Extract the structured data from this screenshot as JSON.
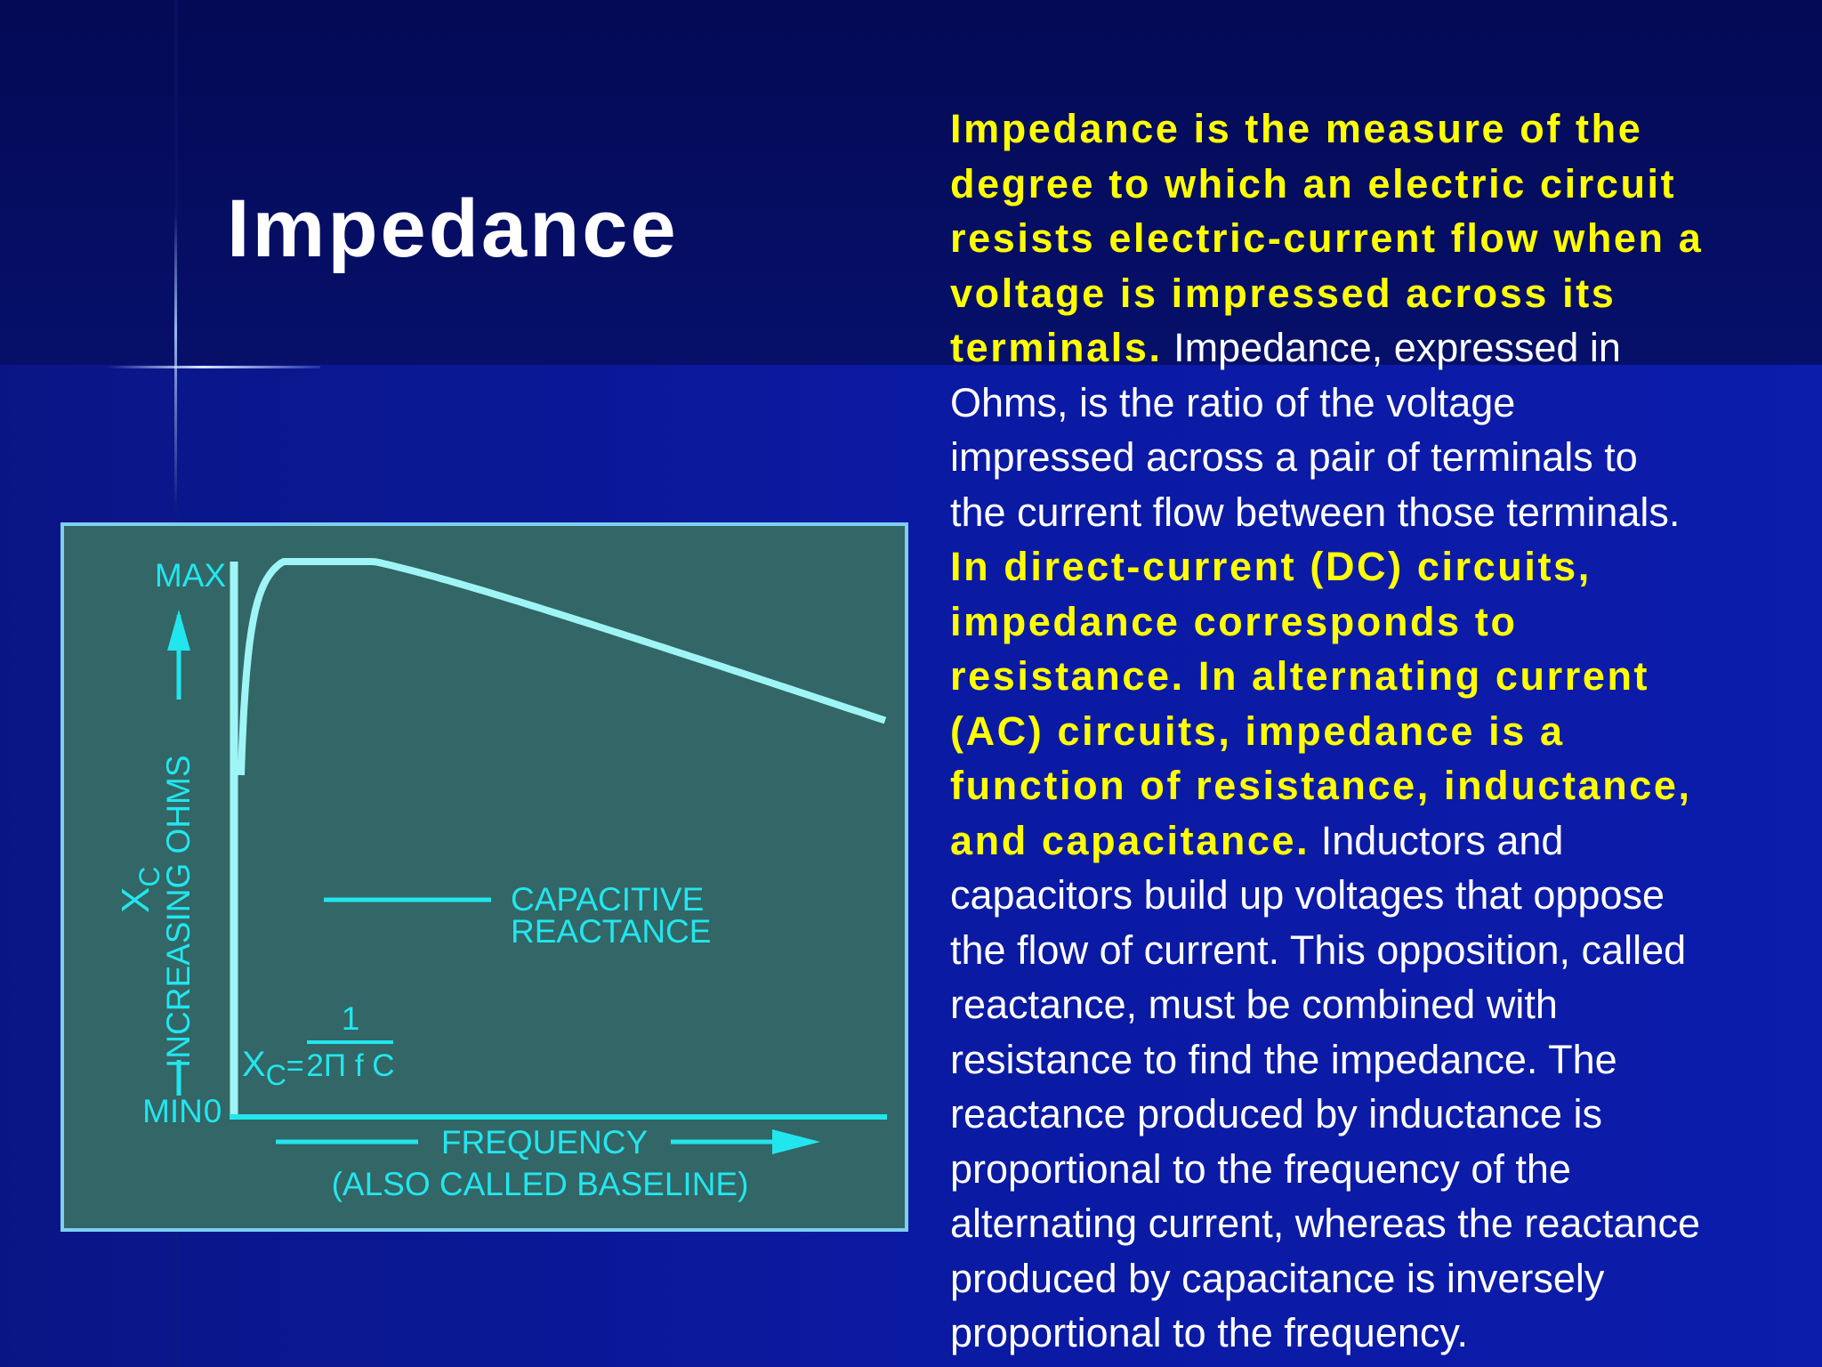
{
  "slide": {
    "title": "Impedance",
    "colors": {
      "background": "#0a18a0",
      "highlight_text": "#ffff00",
      "body_text": "#ffffff",
      "diagram_bg": "#336666",
      "diagram_ink": "#22e6ee",
      "curve": "#9ff5f5"
    }
  },
  "diagram": {
    "y_top_label": "MAX",
    "y_bottom_label": "MIN",
    "origin_label": "0",
    "y_axis_symbol": "X",
    "y_axis_symbol_sub": "C",
    "y_axis_label": "INCREASING OHMS",
    "curve_label_line1": "CAPACITIVE",
    "curve_label_line2": "REACTANCE",
    "formula_lhs": "X",
    "formula_lhs_sub": "C",
    "formula_equals": "=",
    "formula_numerator": "1",
    "formula_denominator": "2Π f C",
    "x_axis_label": "FREQUENCY",
    "x_axis_sublabel": "(ALSO CALLED BASELINE)"
  },
  "text": {
    "lines": [
      [
        {
          "t": "Impedance is the measure of the",
          "h": true
        }
      ],
      [
        {
          "t": "degree to which an electric circuit",
          "h": true
        }
      ],
      [
        {
          "t": "resists electric-current flow when a",
          "h": true
        }
      ],
      [
        {
          "t": "voltage is impressed across its",
          "h": true
        }
      ],
      [
        {
          "t": "terminals.",
          "h": true
        },
        {
          "t": " Impedance, expressed in",
          "h": false
        }
      ],
      [
        {
          "t": "Ohms, is the ratio of the voltage",
          "h": false
        }
      ],
      [
        {
          "t": "impressed across a pair of terminals to",
          "h": false
        }
      ],
      [
        {
          "t": "the current flow between those terminals.",
          "h": false
        }
      ],
      [
        {
          "t": "In direct-current (DC) circuits,",
          "h": true
        }
      ],
      [
        {
          "t": "impedance corresponds to",
          "h": true
        }
      ],
      [
        {
          "t": "resistance. In alternating current",
          "h": true
        }
      ],
      [
        {
          "t": "(AC) circuits, impedance is a",
          "h": true
        }
      ],
      [
        {
          "t": "function of resistance, inductance,",
          "h": true
        }
      ],
      [
        {
          "t": "and capacitance.",
          "h": true
        },
        {
          "t": " Inductors and",
          "h": false
        }
      ],
      [
        {
          "t": "capacitors build up voltages that oppose",
          "h": false
        }
      ],
      [
        {
          "t": "the flow of current. This opposition, called",
          "h": false
        }
      ],
      [
        {
          "t": "reactance, must be combined with",
          "h": false
        }
      ],
      [
        {
          "t": "resistance to find the impedance. The",
          "h": false
        }
      ],
      [
        {
          "t": "reactance produced by inductance is",
          "h": false
        }
      ],
      [
        {
          "t": "proportional to the frequency of the",
          "h": false
        }
      ],
      [
        {
          "t": "alternating current, whereas the reactance",
          "h": false
        }
      ],
      [
        {
          "t": "produced by capacitance is inversely",
          "h": false
        }
      ],
      [
        {
          "t": "proportional to the frequency.",
          "h": false
        }
      ]
    ]
  }
}
